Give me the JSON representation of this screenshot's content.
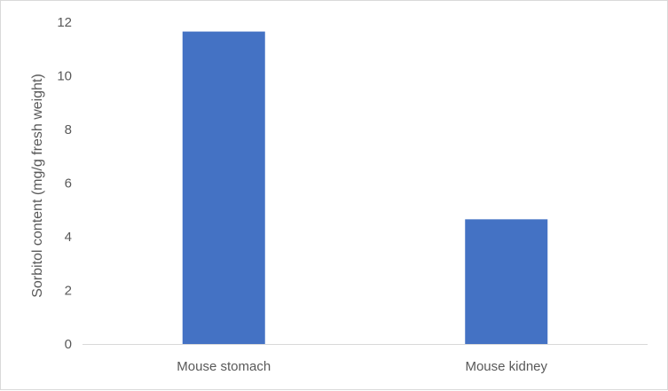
{
  "chart_data": {
    "type": "bar",
    "title": "",
    "xlabel": "",
    "ylabel": "Sorbitol content (mg/g fresh weight)",
    "categories": [
      "Mouse stomach",
      "Mouse kidney"
    ],
    "values": [
      11.65,
      4.65
    ],
    "ylim": [
      0,
      12
    ],
    "yticks": [
      0,
      2,
      4,
      6,
      8,
      10,
      12
    ],
    "ytick_labels": [
      "0",
      "2",
      "4",
      "6",
      "8",
      "10",
      "12"
    ],
    "grid": false,
    "legend": "none",
    "bar_color": "#4472C4",
    "axis_color": "#d9d9d9",
    "text_color": "#595959"
  }
}
